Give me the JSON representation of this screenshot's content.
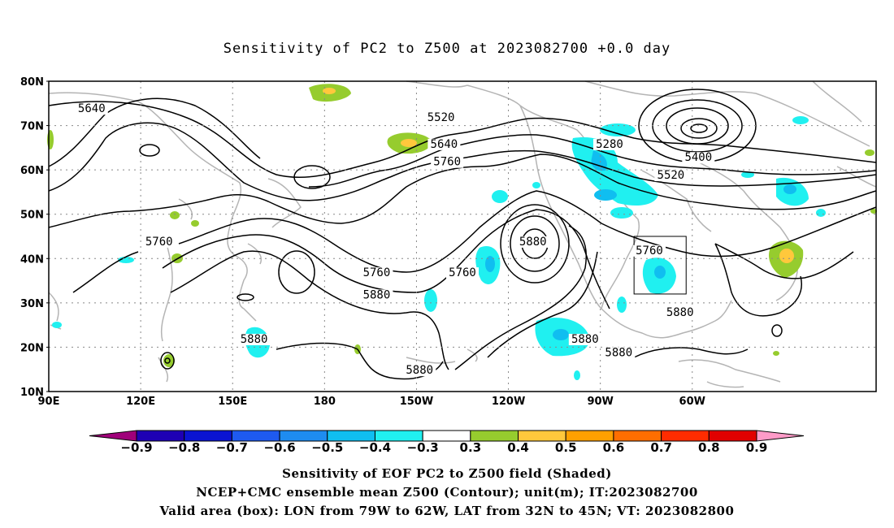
{
  "title": "Sensitivity of PC2 to Z500 at 2023082700 +0.0 day",
  "lat_labels": [
    "80N",
    "70N",
    "60N",
    "50N",
    "40N",
    "30N",
    "20N",
    "10N"
  ],
  "lon_labels": [
    "90E",
    "120E",
    "150E",
    "180",
    "150W",
    "120W",
    "90W",
    "60W"
  ],
  "contour_labels": [
    {
      "text": "5640",
      "lon": 104,
      "lat": 73
    },
    {
      "text": "5520",
      "lon": -142,
      "lat": 71
    },
    {
      "text": "5640",
      "lon": -141,
      "lat": 65
    },
    {
      "text": "5760",
      "lon": -140,
      "lat": 61
    },
    {
      "text": "5280",
      "lon": -87,
      "lat": 65
    },
    {
      "text": "5400",
      "lon": -58,
      "lat": 62
    },
    {
      "text": "5520",
      "lon": -67,
      "lat": 58
    },
    {
      "text": "5760",
      "lon": 126,
      "lat": 43
    },
    {
      "text": "5760",
      "lon": -163,
      "lat": 36
    },
    {
      "text": "5880",
      "lon": -163,
      "lat": 31
    },
    {
      "text": "5760",
      "lon": -135,
      "lat": 36
    },
    {
      "text": "5880",
      "lon": -112,
      "lat": 43
    },
    {
      "text": "5760",
      "lon": -74,
      "lat": 41
    },
    {
      "text": "5880",
      "lon": -64,
      "lat": 27
    },
    {
      "text": "5880",
      "lon": 157,
      "lat": 21
    },
    {
      "text": "5880",
      "lon": -149,
      "lat": 14
    },
    {
      "text": "5880",
      "lon": -95,
      "lat": 21
    },
    {
      "text": "5880",
      "lon": -84,
      "lat": 18
    }
  ],
  "colorbar": {
    "levels": [
      "-0.9",
      "-0.8",
      "-0.7",
      "-0.6",
      "-0.5",
      "-0.4",
      "-0.3",
      "0.3",
      "0.4",
      "0.5",
      "0.6",
      "0.7",
      "0.8",
      "0.9"
    ],
    "colors": [
      "#a0007a",
      "#1e00b4",
      "#0a14d2",
      "#1e5af0",
      "#1e8cf0",
      "#10bef0",
      "#20f0f0",
      "#ffffff",
      "#96cc2e",
      "#ffc83c",
      "#ffa000",
      "#ff6e00",
      "#ff2c00",
      "#e10000",
      "#ff9bc8"
    ]
  },
  "valid_box": {
    "lon_min": -79,
    "lon_max": -62,
    "lat_min": 32,
    "lat_max": 45
  },
  "captions": {
    "line1": "Sensitivity of EOF PC2 to Z500 field (Shaded)",
    "line2": "NCEP+CMC ensemble mean Z500 (Contour); unit(m); IT:2023082700",
    "line3": "Valid area (box): LON from 79W to 62W, LAT from 32N to 45N; VT: 2023082800"
  }
}
